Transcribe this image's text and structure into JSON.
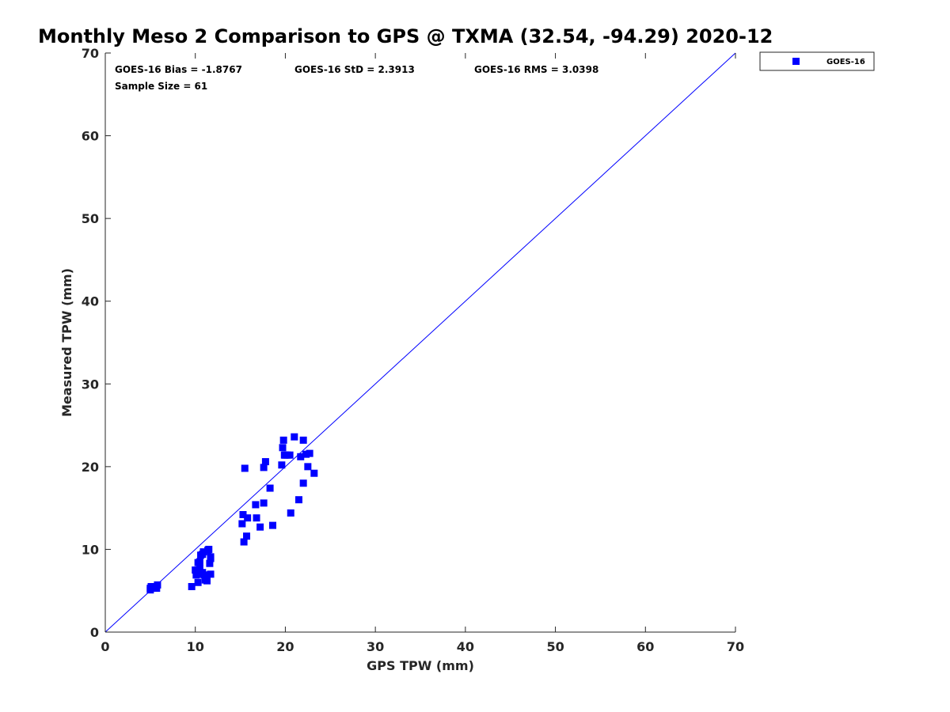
{
  "chart_data": {
    "type": "scatter",
    "title": "Monthly Meso 2 Comparison to GPS @ TXMA (32.54, -94.29) 2020-12",
    "xlabel": "GPS TPW (mm)",
    "ylabel": "Measured TPW (mm)",
    "xlim": [
      0,
      70
    ],
    "ylim": [
      0,
      70
    ],
    "xticks": [
      "0",
      "10",
      "20",
      "30",
      "40",
      "50",
      "60",
      "70"
    ],
    "yticks": [
      "0",
      "10",
      "20",
      "30",
      "40",
      "50",
      "60",
      "70"
    ],
    "grid": false,
    "legend_position": "outside top-right",
    "reference_line": {
      "from": [
        0,
        0
      ],
      "to": [
        70,
        70
      ],
      "color": "#0000ff"
    },
    "stats": {
      "bias": "GOES-16 Bias = -1.8767",
      "std": "GOES-16 StD = 2.3913",
      "rms": "GOES-16 RMS = 3.0398",
      "sample": "Sample Size = 61"
    },
    "series": [
      {
        "name": "GOES-16",
        "color": "#0000ff",
        "marker": "square",
        "x": [
          5.0,
          5.1,
          5.3,
          5.7,
          5.8,
          5.0,
          9.6,
          10.0,
          10.1,
          10.2,
          10.3,
          10.3,
          10.4,
          10.5,
          10.6,
          10.7,
          10.8,
          10.9,
          11.0,
          11.2,
          11.3,
          11.4,
          11.5,
          11.6,
          11.7,
          11.7,
          11.7,
          10.5,
          10.8,
          11.1,
          15.2,
          15.3,
          15.4,
          15.5,
          15.7,
          15.8,
          16.7,
          16.8,
          17.2,
          17.6,
          17.6,
          17.8,
          18.3,
          18.6,
          19.6,
          19.7,
          19.8,
          19.9,
          20.2,
          20.5,
          20.6,
          21.0,
          21.5,
          21.7,
          22.0,
          22.0,
          22.5,
          22.7,
          23.2,
          22.3,
          20.0
        ],
        "y": [
          5.1,
          5.5,
          5.4,
          5.3,
          5.7,
          5.3,
          5.5,
          7.5,
          6.9,
          7.3,
          8.4,
          6.0,
          7.0,
          7.7,
          9.3,
          7.0,
          9.4,
          9.7,
          6.9,
          6.9,
          6.2,
          9.9,
          10.0,
          8.3,
          8.9,
          9.1,
          7.0,
          8.5,
          7.2,
          6.3,
          13.1,
          14.2,
          10.9,
          19.8,
          11.6,
          13.8,
          15.4,
          13.8,
          12.7,
          15.6,
          19.9,
          20.6,
          17.4,
          12.9,
          20.2,
          22.3,
          23.2,
          21.4,
          21.4,
          21.4,
          14.4,
          23.6,
          16.0,
          21.2,
          23.2,
          18.0,
          20.0,
          21.6,
          19.2,
          21.5,
          21.4
        ]
      }
    ]
  }
}
